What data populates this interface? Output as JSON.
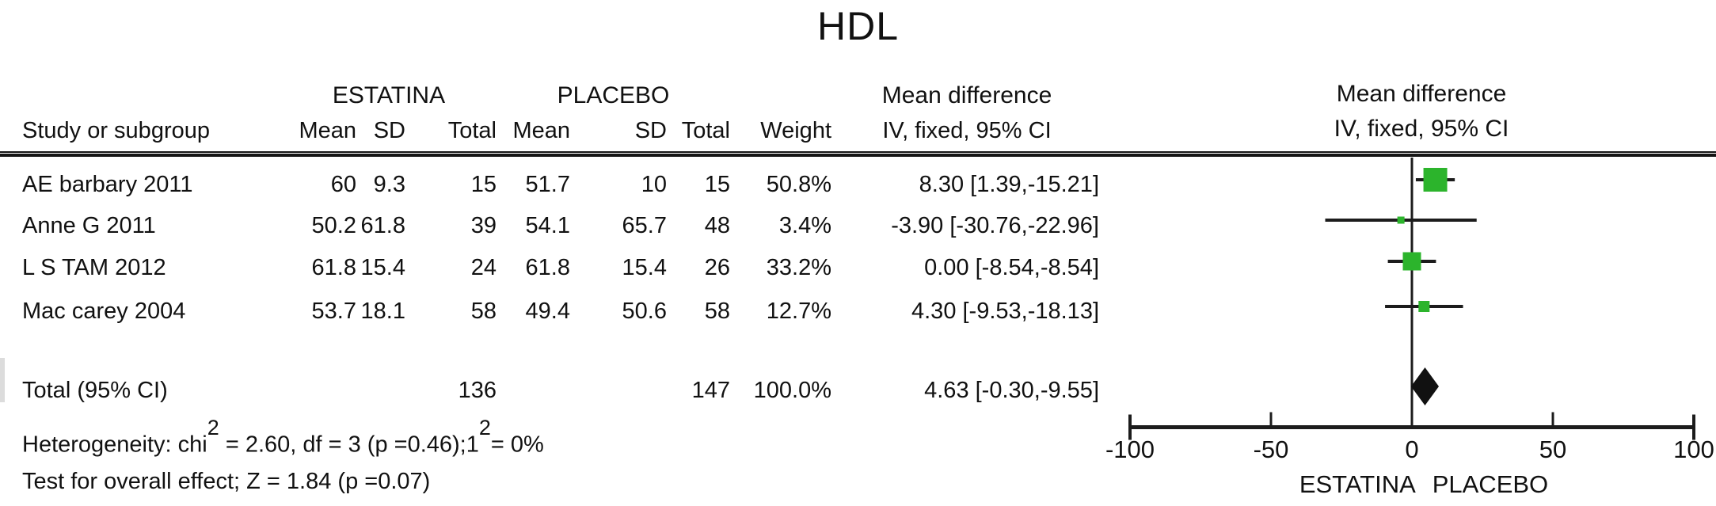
{
  "title": "HDL",
  "table": {
    "group_headers": {
      "estatina": "ESTATINA",
      "placebo": "PLACEBO"
    },
    "study_col_header": "Study or subgroup",
    "sub_headers": [
      "Mean",
      "SD",
      "Total",
      "Mean",
      "SD",
      "Total",
      "Weight"
    ],
    "md_header": {
      "line1": "Mean difference",
      "line2": "IV, fixed, 95% CI"
    },
    "plot_header": {
      "line1": "Mean difference",
      "line2": "IV, fixed, 95% CI"
    }
  },
  "chart_data": {
    "type": "forest",
    "title": "HDL",
    "x_axis": {
      "min": -100,
      "max": 100,
      "ticks": [
        -100,
        -50,
        0,
        50,
        100
      ],
      "tick_labels": [
        "-100",
        "-50",
        "0",
        "50",
        "100"
      ],
      "under_axis_label": "ESTATINA PLACEBO"
    },
    "studies": [
      {
        "label": "AE barbary 2011",
        "treat_mean": "60",
        "treat_sd": "9.3",
        "treat_total": "15",
        "ctrl_mean": "51.7",
        "ctrl_sd": "10",
        "ctrl_total": "15",
        "weight": "50.8%",
        "md_ci_text": "8.30 [1.39,-15.21]",
        "point": 8.3,
        "ci_low": 1.39,
        "ci_high": 15.21,
        "weight_pct": 50.8
      },
      {
        "label": "Anne G 2011",
        "treat_mean": "50.2",
        "treat_sd": "61.8",
        "treat_total": "39",
        "ctrl_mean": "54.1",
        "ctrl_sd": "65.7",
        "ctrl_total": "48",
        "weight": "3.4%",
        "md_ci_text": "-3.90 [-30.76,-22.96]",
        "point": -3.9,
        "ci_low": -30.76,
        "ci_high": 22.96,
        "weight_pct": 3.4
      },
      {
        "label": "L S TAM 2012",
        "treat_mean": "61.8",
        "treat_sd": "15.4",
        "treat_total": "24",
        "ctrl_mean": "61.8",
        "ctrl_sd": "15.4",
        "ctrl_total": "26",
        "weight": "33.2%",
        "md_ci_text": "0.00 [-8.54,-8.54]",
        "point": 0.0,
        "ci_low": -8.54,
        "ci_high": 8.54,
        "weight_pct": 33.2
      },
      {
        "label": "Mac carey 2004",
        "treat_mean": "53.7",
        "treat_sd": "18.1",
        "treat_total": "58",
        "ctrl_mean": "49.4",
        "ctrl_sd": "50.6",
        "ctrl_total": "58",
        "weight": "12.7%",
        "md_ci_text": "4.30 [-9.53,-18.13]",
        "point": 4.3,
        "ci_low": -9.53,
        "ci_high": 18.13,
        "weight_pct": 12.7
      }
    ],
    "total": {
      "label": "Total (95% CI)",
      "treat_total": "136",
      "ctrl_total": "147",
      "weight": "100.0%",
      "md_ci_text": "4.63 [-0.30,-9.55]",
      "point": 4.63,
      "ci_low": -0.3,
      "ci_high": 9.55
    },
    "colors": {
      "marker": "#2cb42c",
      "summary": "#111111",
      "line": "#1c1c1c"
    }
  },
  "footnotes": {
    "heterogeneity": {
      "p1": "Heterogeneity: chi",
      "sup1": "2",
      "p2": " = 2.60, df = 3 (p =0.46);1",
      "sup2": "2",
      "p3": "= 0%"
    },
    "overall_effect": "Test for overall effect; Z = 1.84 (p =0.07)"
  }
}
